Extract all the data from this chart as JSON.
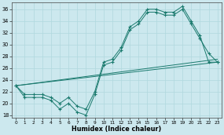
{
  "xlabel": "Humidex (Indice chaleur)",
  "xlim": [
    -0.5,
    23.5
  ],
  "ylim": [
    17.5,
    37.2
  ],
  "yticks": [
    18,
    20,
    22,
    24,
    26,
    28,
    30,
    32,
    34,
    36
  ],
  "xticks": [
    0,
    1,
    2,
    3,
    4,
    5,
    6,
    7,
    8,
    9,
    10,
    11,
    12,
    13,
    14,
    15,
    16,
    17,
    18,
    19,
    20,
    21,
    22,
    23
  ],
  "bg_color": "#cce8ee",
  "grid_color": "#b0d8de",
  "line_color": "#1a7a6e",
  "line1_y": [
    23,
    21,
    21,
    21,
    20.5,
    19,
    20,
    18.5,
    18,
    21.5,
    26.5,
    27,
    29,
    32.5,
    33.5,
    35.5,
    35.5,
    35,
    35,
    36,
    33.5,
    31,
    28.5,
    27
  ],
  "line2_y": [
    23,
    21.5,
    21.5,
    21.5,
    21,
    20,
    21,
    19.5,
    19,
    22,
    27,
    27.5,
    29.5,
    33,
    34,
    36,
    36,
    35.5,
    35.5,
    36.5,
    34,
    31.5,
    27,
    27
  ],
  "diag1": [
    23,
    27
  ],
  "diag2": [
    23,
    27.5
  ]
}
